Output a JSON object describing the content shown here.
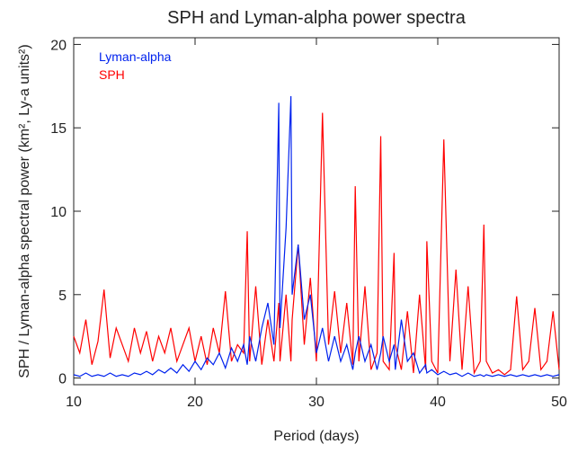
{
  "chart_data": {
    "type": "line",
    "title": "SPH and Lyman-alpha power spectra",
    "xlabel": "Period (days)",
    "ylabel": "SPH / Lyman-alpha spectral power (km², Ly-a units²)",
    "x": [
      10,
      10.5,
      11,
      11.5,
      12,
      12.5,
      13,
      13.5,
      14,
      14.5,
      15,
      15.5,
      16,
      16.5,
      17,
      17.5,
      18,
      18.5,
      19,
      19.5,
      20,
      20.5,
      21,
      21.5,
      22,
      22.5,
      23,
      23.5,
      24,
      24.3,
      24.5,
      25,
      25.5,
      26,
      26.5,
      26.9,
      27,
      27.5,
      27.9,
      28,
      28.5,
      29,
      29.5,
      30,
      30.5,
      31,
      31.5,
      32,
      32.5,
      33,
      33.2,
      33.5,
      34,
      34.5,
      35,
      35.3,
      35.5,
      36,
      36.4,
      36.5,
      37,
      37.5,
      38,
      38.5,
      39,
      39.1,
      39.5,
      40,
      40.5,
      41,
      41.5,
      42,
      42.5,
      43,
      43.5,
      43.8,
      44,
      44.5,
      45,
      45.5,
      46,
      46.5,
      47,
      47.5,
      48,
      48.5,
      49,
      49.5,
      50
    ],
    "series": [
      {
        "name": "SPH",
        "color": "#ff0000",
        "values": [
          2.5,
          1.5,
          3.5,
          0.8,
          2.2,
          5.3,
          1.2,
          3.0,
          2.0,
          1.0,
          3.0,
          1.5,
          2.8,
          1.0,
          2.5,
          1.5,
          3.0,
          1.0,
          2.0,
          3.0,
          1.0,
          2.5,
          0.8,
          3.0,
          1.5,
          5.2,
          1.0,
          2.0,
          1.5,
          8.8,
          1.0,
          5.5,
          0.8,
          3.5,
          1.0,
          4.5,
          1.0,
          5.0,
          1.0,
          3.5,
          8.0,
          2.0,
          6.0,
          1.0,
          15.9,
          2.0,
          5.2,
          1.5,
          4.5,
          0.8,
          11.5,
          1.0,
          5.5,
          0.5,
          1.5,
          14.5,
          1.0,
          0.5,
          7.5,
          2.0,
          0.5,
          4.0,
          0.3,
          5.0,
          0.5,
          8.2,
          1.0,
          0.3,
          14.3,
          1.0,
          6.5,
          0.5,
          5.5,
          0.3,
          1.0,
          9.2,
          1.0,
          0.3,
          0.5,
          0.2,
          0.5,
          4.9,
          0.5,
          1.0,
          4.2,
          0.5,
          1.0,
          4.0,
          0.5
        ]
      },
      {
        "name": "Lyman-alpha",
        "color": "#0022ee",
        "values": [
          0.2,
          0.1,
          0.3,
          0.1,
          0.2,
          0.1,
          0.3,
          0.1,
          0.2,
          0.1,
          0.3,
          0.2,
          0.4,
          0.2,
          0.5,
          0.3,
          0.6,
          0.3,
          0.8,
          0.4,
          1.0,
          0.5,
          1.2,
          0.8,
          1.5,
          0.6,
          1.8,
          1.0,
          2.0,
          0.8,
          2.5,
          1.0,
          3.0,
          4.5,
          2.0,
          16.5,
          3.0,
          9.0,
          16.9,
          5.0,
          8.0,
          3.5,
          5.0,
          1.5,
          3.0,
          1.0,
          2.5,
          1.0,
          2.0,
          0.5,
          1.5,
          2.5,
          1.0,
          2.0,
          0.5,
          1.5,
          2.5,
          1.0,
          2.0,
          0.5,
          3.5,
          1.0,
          1.5,
          0.3,
          0.8,
          0.3,
          0.5,
          0.2,
          0.4,
          0.2,
          0.3,
          0.1,
          0.3,
          0.1,
          0.2,
          0.1,
          0.2,
          0.1,
          0.2,
          0.1,
          0.2,
          0.1,
          0.2,
          0.1,
          0.2,
          0.1,
          0.2,
          0.1,
          0.2
        ]
      }
    ],
    "xlim": [
      10,
      50
    ],
    "xticks": [
      10,
      20,
      30,
      40,
      50
    ],
    "ylim": [
      -0.4,
      20.4
    ],
    "yticks": [
      0,
      5,
      10,
      15,
      20
    ],
    "legend": "upper left"
  }
}
